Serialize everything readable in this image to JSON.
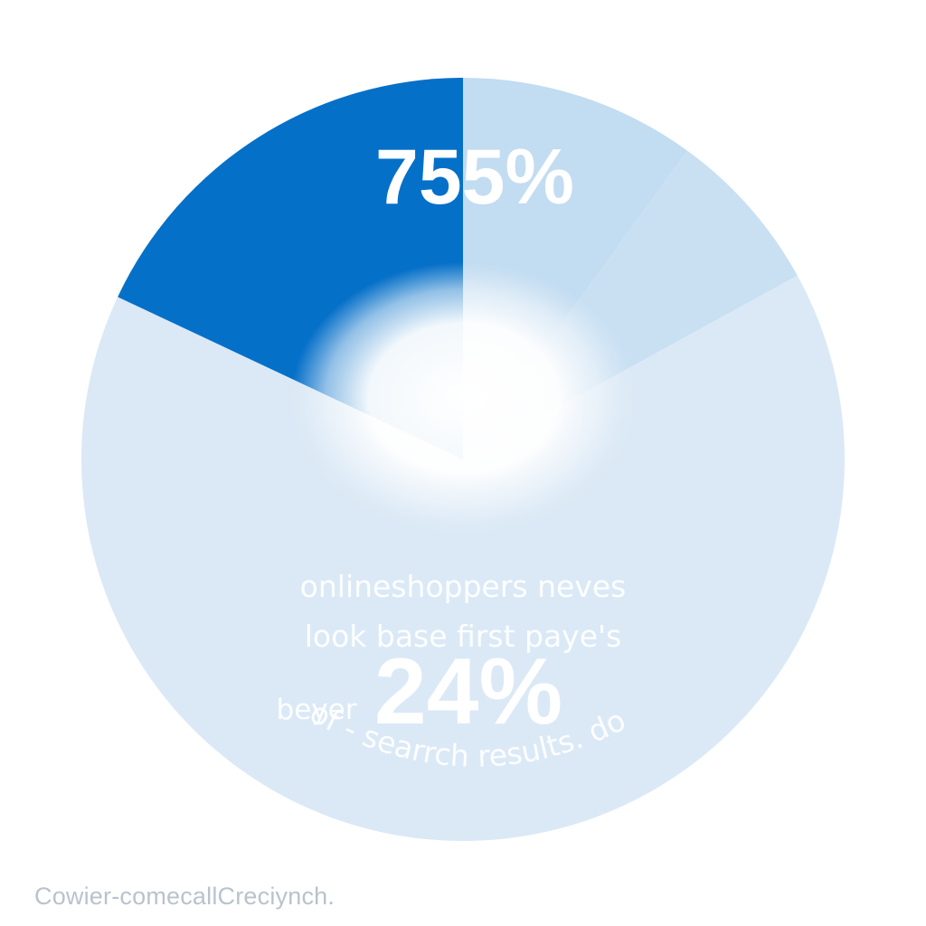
{
  "chart_data": {
    "type": "pie",
    "slices": [
      {
        "value": 10,
        "color": "#c2dcf1"
      },
      {
        "value": 7,
        "color": "#c9e0f3"
      },
      {
        "value": 65,
        "color": "#dbe9f6"
      },
      {
        "value": 18,
        "color": "#0570c8"
      }
    ],
    "start_angle_deg": 0,
    "center_glow": true,
    "labels": {
      "top_value": "755%",
      "bottom_value": "24%",
      "caption_line_1": "onlineshoppers neves",
      "caption_line_2": "look base first paye's",
      "caption_prefix": "beyer",
      "curved_caption": "of - searrch results. do"
    },
    "title": "",
    "legend": "none"
  },
  "footer": {
    "text": "Cowier-comecallCreciynch."
  },
  "colors": {
    "background": "#ffffff",
    "accent": "#0570c8",
    "footer_text": "#b9c3cc"
  }
}
